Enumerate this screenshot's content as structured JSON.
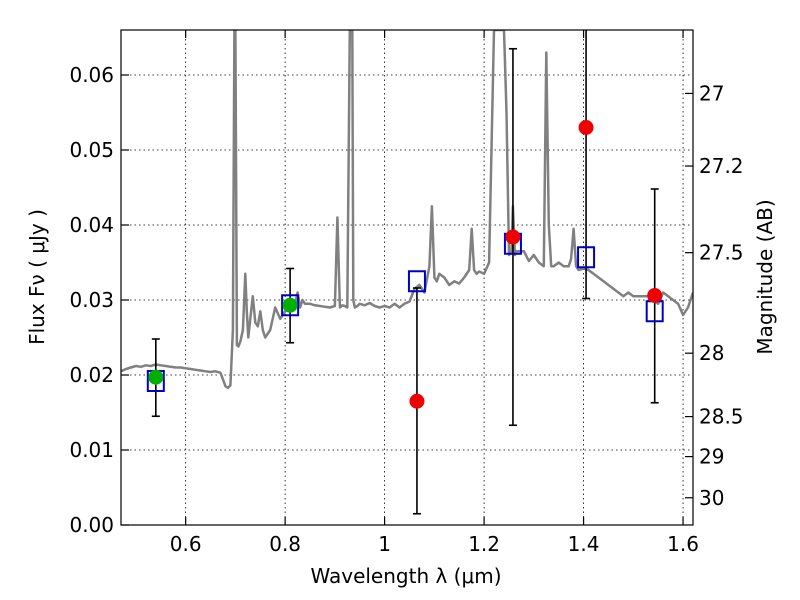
{
  "chart_data": {
    "type": "scatter",
    "title": "",
    "xlabel": "Wavelength  λ (μm)",
    "ylabel": "Flux  Fν  ( μJy )",
    "ylabel_right": "Magnitude (AB)",
    "xlim": [
      0.47,
      1.62
    ],
    "ylim": [
      0.0,
      0.066
    ],
    "grid": true,
    "x_ticks": [
      0.6,
      0.8,
      1.0,
      1.2,
      1.4,
      1.6
    ],
    "x_tick_labels": [
      "0.6",
      "0.8",
      "1",
      "1.2",
      "1.4",
      "1.6"
    ],
    "y_ticks": [
      0.0,
      0.01,
      0.02,
      0.03,
      0.04,
      0.05,
      0.06
    ],
    "y_tick_labels": [
      "0.00",
      "0.01",
      "0.02",
      "0.03",
      "0.04",
      "0.05",
      "0.06"
    ],
    "right_ticks": [
      27,
      27.2,
      27.5,
      28,
      28.5,
      29,
      30
    ],
    "right_tick_labels": [
      "27",
      "27.2",
      "27.5",
      "28",
      "28.5",
      "29",
      "30"
    ],
    "colors": {
      "spectrum": "#808080",
      "green_points": "#00b000",
      "red_points": "#ee0000",
      "model_squares": "#0000cc",
      "errorbars": "#000000"
    },
    "series": [
      {
        "kind": "spectrum",
        "x": [
          0.47,
          0.48,
          0.49,
          0.5,
          0.51,
          0.52,
          0.53,
          0.54,
          0.55,
          0.56,
          0.57,
          0.58,
          0.59,
          0.6,
          0.61,
          0.62,
          0.63,
          0.64,
          0.65,
          0.66,
          0.67,
          0.68,
          0.685,
          0.69,
          0.695,
          0.698,
          0.7,
          0.703,
          0.706,
          0.71,
          0.715,
          0.72,
          0.723,
          0.726,
          0.73,
          0.735,
          0.74,
          0.745,
          0.75,
          0.755,
          0.76,
          0.77,
          0.78,
          0.79,
          0.8,
          0.81,
          0.82,
          0.825,
          0.83,
          0.835,
          0.84,
          0.85,
          0.86,
          0.87,
          0.88,
          0.89,
          0.9,
          0.905,
          0.91,
          0.915,
          0.92,
          0.925,
          0.93,
          0.935,
          0.937,
          0.94,
          0.945,
          0.95,
          0.96,
          0.97,
          0.98,
          0.99,
          1.0,
          1.01,
          1.02,
          1.03,
          1.04,
          1.05,
          1.06,
          1.07,
          1.08,
          1.09,
          1.095,
          1.1,
          1.105,
          1.11,
          1.12,
          1.13,
          1.14,
          1.15,
          1.16,
          1.17,
          1.175,
          1.18,
          1.185,
          1.19,
          1.2,
          1.21,
          1.22,
          1.23,
          1.24,
          1.245,
          1.25,
          1.255,
          1.258,
          1.262,
          1.265,
          1.27,
          1.28,
          1.29,
          1.3,
          1.31,
          1.32,
          1.325,
          1.33,
          1.335,
          1.34,
          1.35,
          1.36,
          1.37,
          1.375,
          1.38,
          1.385,
          1.39,
          1.4,
          1.41,
          1.42,
          1.43,
          1.44,
          1.45,
          1.46,
          1.47,
          1.48,
          1.49,
          1.5,
          1.51,
          1.52,
          1.53,
          1.54,
          1.55,
          1.56,
          1.57,
          1.58,
          1.59,
          1.6,
          1.61,
          1.62
        ],
        "y": [
          0.0205,
          0.0208,
          0.021,
          0.0212,
          0.0211,
          0.0213,
          0.0212,
          0.0214,
          0.0213,
          0.0212,
          0.0211,
          0.021,
          0.021,
          0.0209,
          0.0208,
          0.0207,
          0.0206,
          0.0205,
          0.0204,
          0.0205,
          0.0203,
          0.0185,
          0.0183,
          0.0186,
          0.026,
          0.066,
          0.066,
          0.024,
          0.0238,
          0.0245,
          0.026,
          0.0335,
          0.0285,
          0.025,
          0.0275,
          0.0305,
          0.027,
          0.0265,
          0.0285,
          0.026,
          0.025,
          0.026,
          0.029,
          0.0275,
          0.0285,
          0.029,
          0.0295,
          0.031,
          0.029,
          0.03,
          0.0295,
          0.0295,
          0.0293,
          0.0292,
          0.0291,
          0.029,
          0.0292,
          0.041,
          0.029,
          0.0293,
          0.0292,
          0.029,
          0.066,
          0.066,
          0.03,
          0.029,
          0.0292,
          0.0295,
          0.0293,
          0.0296,
          0.0292,
          0.029,
          0.0292,
          0.029,
          0.0295,
          0.029,
          0.0295,
          0.0298,
          0.0315,
          0.032,
          0.031,
          0.0345,
          0.0425,
          0.033,
          0.0325,
          0.0335,
          0.033,
          0.032,
          0.0325,
          0.0322,
          0.033,
          0.034,
          0.0395,
          0.034,
          0.0335,
          0.0338,
          0.0335,
          0.035,
          0.066,
          0.066,
          0.066,
          0.055,
          0.036,
          0.0365,
          0.0425,
          0.036,
          0.0365,
          0.0365,
          0.0365,
          0.0352,
          0.036,
          0.035,
          0.0345,
          0.063,
          0.04,
          0.0345,
          0.0345,
          0.035,
          0.0345,
          0.0345,
          0.0355,
          0.0395,
          0.0345,
          0.034,
          0.0342,
          0.034,
          0.0335,
          0.033,
          0.0325,
          0.032,
          0.0315,
          0.031,
          0.0305,
          0.031,
          0.0305,
          0.0305,
          0.0305,
          0.0305,
          0.03,
          0.0295,
          0.031,
          0.0305,
          0.03,
          0.0295,
          0.028,
          0.029,
          0.031
        ]
      },
      {
        "kind": "points",
        "name": "green",
        "x": [
          0.54,
          0.81
        ],
        "y": [
          0.0197,
          0.0293
        ],
        "yerr_low": [
          0.0145,
          0.0243
        ],
        "yerr_high": [
          0.0248,
          0.0342
        ]
      },
      {
        "kind": "points",
        "name": "red",
        "x": [
          1.065,
          1.258,
          1.405,
          1.543
        ],
        "y": [
          0.0165,
          0.0384,
          0.053,
          0.0306
        ],
        "yerr_low": [
          0.0015,
          0.0133,
          0.0302,
          0.0163
        ],
        "yerr_high": [
          0.0316,
          0.0635,
          0.066,
          0.0448
        ]
      },
      {
        "kind": "squares",
        "name": "model",
        "x": [
          0.54,
          0.81,
          1.065,
          1.258,
          1.405,
          1.543
        ],
        "y": [
          0.0192,
          0.0293,
          0.0325,
          0.0375,
          0.0357,
          0.0285
        ]
      }
    ]
  }
}
